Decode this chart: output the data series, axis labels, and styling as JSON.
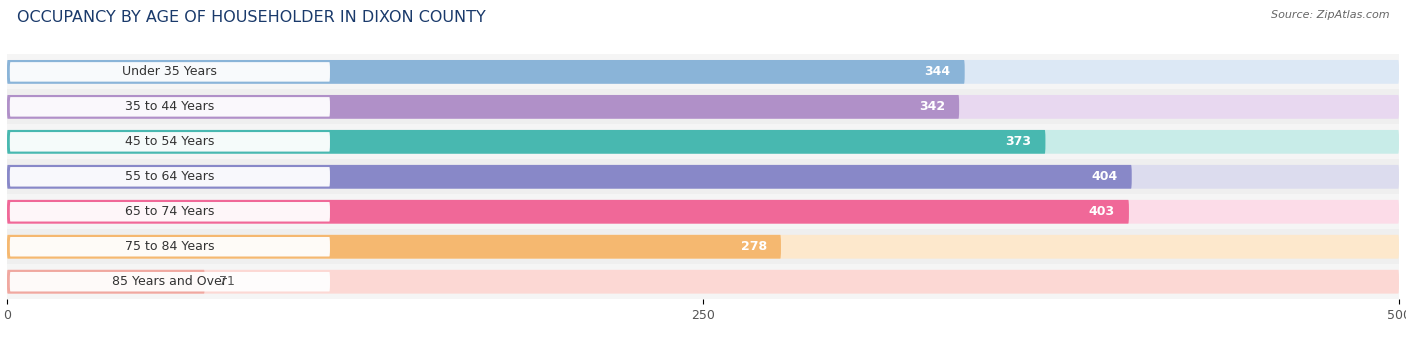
{
  "title": "OCCUPANCY BY AGE OF HOUSEHOLDER IN DIXON COUNTY",
  "source": "Source: ZipAtlas.com",
  "categories": [
    "Under 35 Years",
    "35 to 44 Years",
    "45 to 54 Years",
    "55 to 64 Years",
    "65 to 74 Years",
    "75 to 84 Years",
    "85 Years and Over"
  ],
  "values": [
    344,
    342,
    373,
    404,
    403,
    278,
    71
  ],
  "bar_colors": [
    "#8ab4d8",
    "#b090c8",
    "#48b8b0",
    "#8888c8",
    "#f06898",
    "#f5b870",
    "#f0a8a0"
  ],
  "bar_bg_colors": [
    "#dce8f5",
    "#e8d8f0",
    "#c8ece8",
    "#dcdcee",
    "#fcdce8",
    "#fde8cc",
    "#fcd8d4"
  ],
  "row_bg_colors": [
    "#f5f5f5",
    "#efefef",
    "#f5f5f5",
    "#efefef",
    "#f5f5f5",
    "#efefef",
    "#f5f5f5"
  ],
  "xlim": [
    0,
    500
  ],
  "xticks": [
    0,
    250,
    500
  ],
  "background_color": "#ffffff",
  "bar_height": 0.68,
  "title_fontsize": 11.5,
  "label_fontsize": 9,
  "value_fontsize": 9
}
